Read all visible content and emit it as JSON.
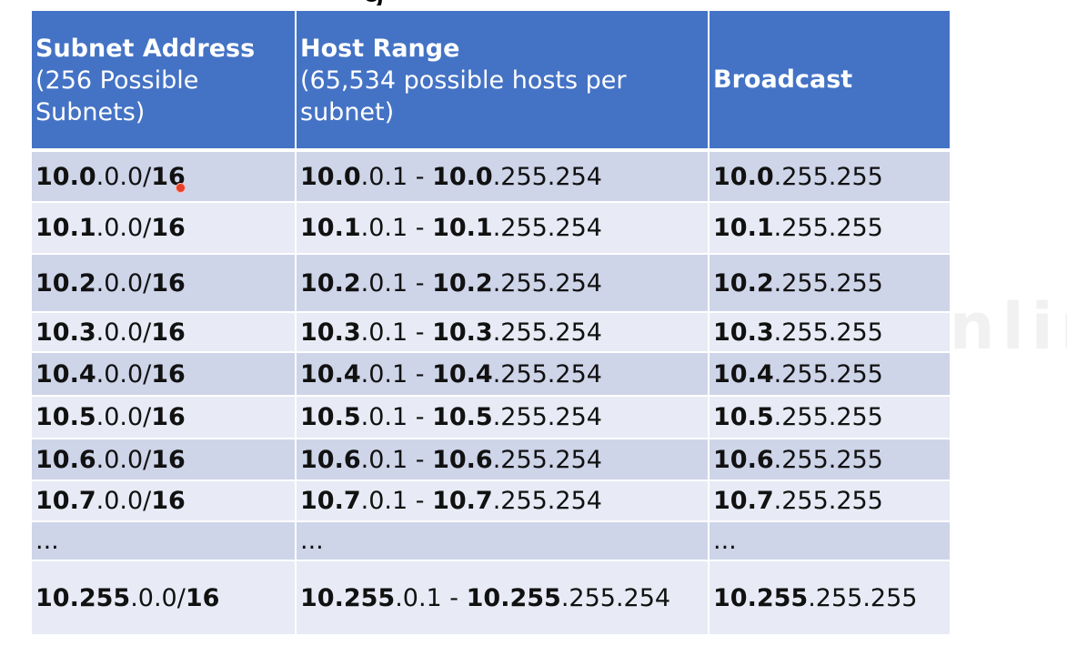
{
  "header": {
    "subnet": {
      "bold": "Subnet Address",
      "sub": "(256 Possible Subnets)"
    },
    "host": {
      "bold": "Host Range",
      "sub": "(65,534 possible hosts per subnet)"
    },
    "broadcast": {
      "bold": "Broadcast"
    }
  },
  "rows": [
    {
      "sub_p": "10.0",
      "sub_mid": ".0.0/",
      "sub_cidr": "16",
      "host_p1": "10.0",
      "host_mid1": ".0.1 - ",
      "host_p2": "10.0",
      "host_mid2": ".255.254",
      "bc_p": "10.0",
      "bc_rest": ".255.255"
    },
    {
      "sub_p": "10.1",
      "sub_mid": ".0.0/",
      "sub_cidr": "16",
      "host_p1": "10.1",
      "host_mid1": ".0.1 - ",
      "host_p2": "10.1",
      "host_mid2": ".255.254",
      "bc_p": "10.1",
      "bc_rest": ".255.255"
    },
    {
      "sub_p": "10.2",
      "sub_mid": ".0.0/",
      "sub_cidr": "16",
      "host_p1": "10.2",
      "host_mid1": ".0.1 - ",
      "host_p2": "10.2",
      "host_mid2": ".255.254",
      "bc_p": "10.2",
      "bc_rest": ".255.255"
    },
    {
      "sub_p": "10.3",
      "sub_mid": ".0.0/",
      "sub_cidr": "16",
      "host_p1": "10.3",
      "host_mid1": ".0.1 - ",
      "host_p2": "10.3",
      "host_mid2": ".255.254",
      "bc_p": "10.3",
      "bc_rest": ".255.255"
    },
    {
      "sub_p": "10.4",
      "sub_mid": ".0.0/",
      "sub_cidr": "16",
      "host_p1": "10.4",
      "host_mid1": ".0.1 - ",
      "host_p2": "10.4",
      "host_mid2": ".255.254",
      "bc_p": "10.4",
      "bc_rest": ".255.255"
    },
    {
      "sub_p": "10.5",
      "sub_mid": ".0.0/",
      "sub_cidr": "16",
      "host_p1": "10.5",
      "host_mid1": ".0.1 - ",
      "host_p2": "10.5",
      "host_mid2": ".255.254",
      "bc_p": "10.5",
      "bc_rest": ".255.255"
    },
    {
      "sub_p": "10.6",
      "sub_mid": ".0.0/",
      "sub_cidr": "16",
      "host_p1": "10.6",
      "host_mid1": ".0.1 - ",
      "host_p2": "10.6",
      "host_mid2": ".255.254",
      "bc_p": "10.6",
      "bc_rest": ".255.255"
    },
    {
      "sub_p": "10.7",
      "sub_mid": ".0.0/",
      "sub_cidr": "16",
      "host_p1": "10.7",
      "host_mid1": ".0.1 - ",
      "host_p2": "10.7",
      "host_mid2": ".255.254",
      "bc_p": "10.7",
      "bc_rest": ".255.255"
    }
  ],
  "ellipsis": "...",
  "last_row": {
    "sub_p": "10.255",
    "sub_mid": ".0.0/",
    "sub_cidr": "16",
    "host_p1": "10.255",
    "host_mid1": ".0.1 - ",
    "host_p2": "10.255",
    "host_mid2": ".255.254",
    "bc_p": "10.255",
    "bc_rest": ".255.255"
  },
  "watermark": "© AMRITA AHEAD Online",
  "colors": {
    "header_bg": "#4473c5",
    "row_dark": "#ced5e9",
    "row_light": "#e8ebf5",
    "cursor": "#e8402a"
  }
}
